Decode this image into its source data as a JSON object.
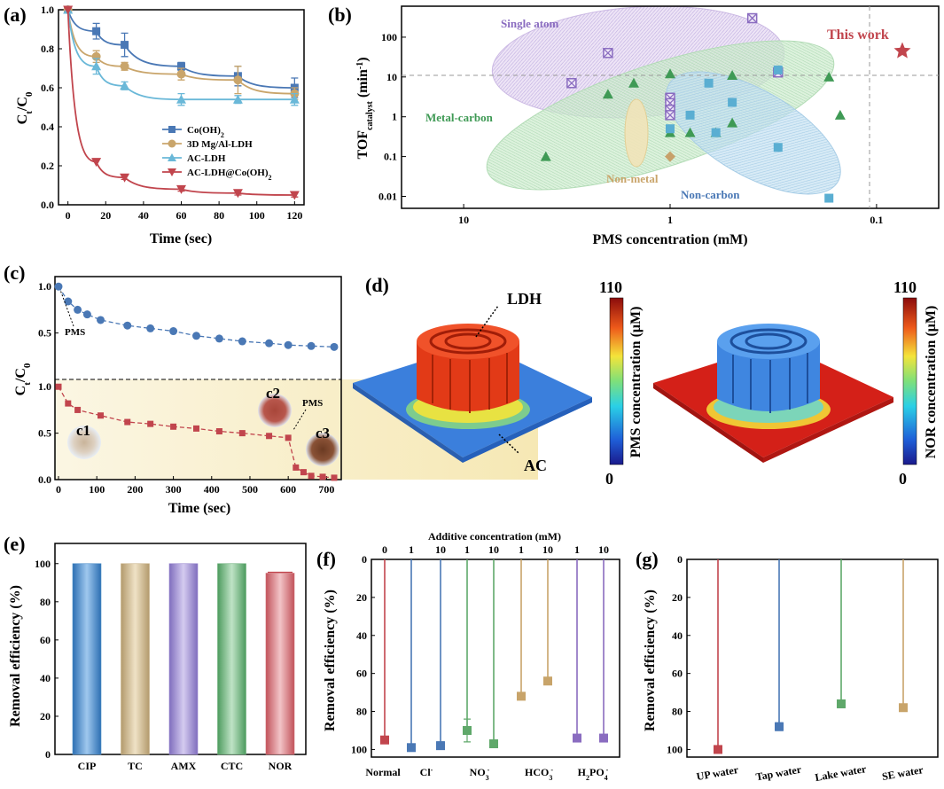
{
  "palette": {
    "blue": "#4a78b5",
    "tan": "#c9a56b",
    "cyan": "#6ab8d8",
    "red": "#c1454d",
    "green": "#5fa86a",
    "purple": "#8a6cc0",
    "lightblue": "#5aaed2",
    "darkgreen": "#3f9a55",
    "brown": "#c7a16a"
  },
  "chart_data": [
    {
      "id": "a",
      "panel_label": "(a)",
      "type": "line",
      "xlabel": "Time (sec)",
      "ylabel": "Ct/C0",
      "ylabel_main": "C",
      "ylabel_sub1": "t",
      "ylabel_mid": "/C",
      "ylabel_sub2": "0",
      "xlim": [
        -5,
        125
      ],
      "ylim": [
        0,
        1
      ],
      "xticks": [
        "0",
        "20",
        "40",
        "60",
        "80",
        "100",
        "120"
      ],
      "yticks": [
        "0.0",
        "0.2",
        "0.4",
        "0.6",
        "0.8",
        "1.0"
      ],
      "series": [
        {
          "name": "Co(OH)2",
          "label_main": "Co(OH)",
          "label_sub": "2",
          "marker": "square",
          "color": "#4a78b5",
          "x": [
            0,
            15,
            30,
            60,
            90,
            120
          ],
          "y": [
            1.0,
            0.89,
            0.82,
            0.71,
            0.66,
            0.6
          ],
          "err": [
            0,
            0.04,
            0.06,
            0.02,
            0.05,
            0.05
          ]
        },
        {
          "name": "3D Mg/Al-LDH",
          "label_main": "3D Mg/Al-LDH",
          "label_sub": "",
          "marker": "circle",
          "color": "#c9a56b",
          "x": [
            0,
            15,
            30,
            60,
            90,
            120
          ],
          "y": [
            1.0,
            0.76,
            0.71,
            0.67,
            0.64,
            0.57
          ],
          "err": [
            0,
            0.03,
            0.02,
            0.03,
            0.07,
            0.03
          ]
        },
        {
          "name": "AC-LDH",
          "label_main": "AC-LDH",
          "label_sub": "",
          "marker": "triangle-up",
          "color": "#6ab8d8",
          "x": [
            0,
            15,
            30,
            60,
            90,
            120
          ],
          "y": [
            1.0,
            0.71,
            0.61,
            0.54,
            0.54,
            0.54
          ],
          "err": [
            0,
            0.04,
            0.02,
            0.03,
            0.02,
            0.03
          ]
        },
        {
          "name": "AC-LDH@Co(OH)2",
          "label_main": "AC-LDH@Co(OH)",
          "label_sub": "2",
          "marker": "triangle-down",
          "color": "#c1454d",
          "x": [
            0,
            15,
            30,
            60,
            90,
            120
          ],
          "y": [
            1.0,
            0.22,
            0.14,
            0.08,
            0.06,
            0.05
          ],
          "err": [
            0,
            0,
            0.01,
            0.01,
            0.01,
            0.01
          ]
        }
      ]
    },
    {
      "id": "b",
      "panel_label": "(b)",
      "type": "scatter",
      "xlabel": "PMS concentration (mM)",
      "ylabel": "TOF catalyst (min-1)",
      "ylabel_main": "TOF",
      "ylabel_sub": "catalyst",
      "ylabel_unit": " (min",
      "ylabel_sup": "-1",
      "ylabel_close": ")",
      "xscale": "log-reversed",
      "yscale": "log",
      "xlim": [
        20,
        0.05
      ],
      "ylim": [
        0.005,
        600
      ],
      "xticks": [
        "10",
        "1",
        "0.1"
      ],
      "yticks": [
        "0.01",
        "0.1",
        "1",
        "10",
        "100"
      ],
      "region_labels": [
        "Single atom",
        "Metal-carbon",
        "Non-metal",
        "Non-carbon",
        "This work"
      ],
      "groups": [
        {
          "name": "Single atom",
          "marker": "crossed-square",
          "color": "#8a6cc0",
          "x": [
            3,
            2,
            1,
            1,
            1,
            1,
            0.4,
            0.3
          ],
          "y": [
            7,
            40,
            3,
            2.2,
            1.5,
            1.1,
            300,
            13
          ]
        },
        {
          "name": "Metal-carbon",
          "marker": "triangle",
          "color": "#3f9a55",
          "x": [
            4,
            2,
            1.5,
            1,
            1,
            0.8,
            0.6,
            0.5,
            0.5,
            0.17,
            0.15
          ],
          "y": [
            0.1,
            3.7,
            7,
            12,
            0.4,
            0.4,
            0.4,
            0.7,
            11,
            10,
            1.1
          ]
        },
        {
          "name": "Non-carbon",
          "marker": "square",
          "color": "#5aaed2",
          "x": [
            1,
            0.8,
            0.65,
            0.6,
            0.5,
            0.3,
            0.3,
            0.17
          ],
          "y": [
            0.5,
            1.1,
            7,
            0.4,
            2.3,
            15,
            0.17,
            0.009
          ]
        },
        {
          "name": "Non-metal",
          "marker": "diamond",
          "color": "#c7a16a",
          "x": [
            1
          ],
          "y": [
            0.1
          ]
        },
        {
          "name": "This work",
          "marker": "star",
          "color": "#c1454d",
          "x": [
            0.075
          ],
          "y": [
            45
          ]
        }
      ],
      "reference_lines": {
        "x": 0.1,
        "y": 10
      }
    },
    {
      "id": "c",
      "panel_label": "(c)",
      "type": "line",
      "xlabel": "Time (sec)",
      "ylabel": "Ct/C0",
      "ylabel_main": "C",
      "ylabel_sub1": "t",
      "ylabel_mid": "/C",
      "ylabel_sub2": "0",
      "xticks": [
        "0",
        "100",
        "200",
        "300",
        "400",
        "500",
        "600",
        "700"
      ],
      "yticks_top": [
        "0.5",
        "1.0"
      ],
      "yticks_bottom": [
        "0.0",
        "0.5",
        "1.0"
      ],
      "annotations": [
        "PMS",
        "PMS",
        "c1",
        "c2",
        "c3"
      ],
      "series": [
        {
          "name": "top",
          "color": "#4a78b5",
          "x": [
            0,
            25,
            50,
            75,
            110,
            180,
            240,
            300,
            360,
            420,
            480,
            550,
            600,
            660,
            720
          ],
          "y": [
            1.0,
            0.84,
            0.75,
            0.7,
            0.64,
            0.58,
            0.55,
            0.52,
            0.47,
            0.44,
            0.41,
            0.39,
            0.37,
            0.36,
            0.35
          ]
        },
        {
          "name": "bottom",
          "color": "#c1454d",
          "x": [
            0,
            25,
            50,
            110,
            180,
            240,
            300,
            360,
            420,
            480,
            550,
            600,
            620,
            640,
            660,
            690,
            720
          ],
          "y": [
            1.0,
            0.82,
            0.75,
            0.69,
            0.62,
            0.6,
            0.57,
            0.55,
            0.52,
            0.5,
            0.47,
            0.45,
            0.13,
            0.08,
            0.04,
            0.03,
            0.02
          ]
        }
      ]
    },
    {
      "id": "e",
      "panel_label": "(e)",
      "type": "bar",
      "ylabel": "Removal efficiency (%)",
      "categories": [
        "CIP",
        "TC",
        "AMX",
        "CTC",
        "NOR"
      ],
      "values": [
        100,
        100,
        100,
        100,
        95
      ],
      "ylim": [
        0,
        100
      ],
      "yticks": [
        "0",
        "20",
        "40",
        "60",
        "80",
        "100"
      ],
      "colors": [
        "#4d8fc8",
        "#c8b48a",
        "#9a88cf",
        "#6db07a",
        "#cf6b72"
      ]
    },
    {
      "id": "f",
      "panel_label": "(f)",
      "type": "bar",
      "ylabel": "Removal efficiency (%)",
      "top_title": "Additive concentration (mM)",
      "orientation": "inverted",
      "categories": [
        "Normal",
        "Cl-",
        "Cl-",
        "NO3-",
        "NO3-",
        "HCO3-",
        "HCO3-",
        "H2PO4-",
        "H2PO4-"
      ],
      "group_labels": [
        {
          "text": "Normal",
          "sub": "",
          "sup": ""
        },
        {
          "text": "Cl",
          "sub": "",
          "sup": "-"
        },
        {
          "text": "NO",
          "sub": "3",
          "sup": "-"
        },
        {
          "text": "HCO",
          "sub": "3",
          "sup": "-"
        },
        {
          "text": "H",
          "sub": "2",
          "mid": "PO",
          "sub2": "4",
          "sup": "-"
        }
      ],
      "concentrations": [
        "0",
        "1",
        "10",
        "1",
        "10",
        "1",
        "10",
        "1",
        "10"
      ],
      "values": [
        95,
        99,
        98,
        90,
        97,
        72,
        64,
        94,
        94
      ],
      "err": [
        1,
        1,
        2,
        6,
        1,
        1,
        1,
        1,
        1
      ],
      "colors": [
        "#c1454d",
        "#4a78b5",
        "#4a78b5",
        "#5fa86a",
        "#5fa86a",
        "#c8a46a",
        "#c8a46a",
        "#8a6cc0",
        "#8a6cc0"
      ],
      "yticks": [
        "0",
        "20",
        "40",
        "60",
        "80",
        "100"
      ]
    },
    {
      "id": "g",
      "panel_label": "(g)",
      "type": "bar",
      "ylabel": "Removal efficiency (%)",
      "orientation": "inverted",
      "categories": [
        "UP water",
        "Tap water",
        "Lake water",
        "SE water"
      ],
      "values": [
        100,
        88,
        76,
        78
      ],
      "err": [
        1,
        2,
        2,
        1
      ],
      "colors": [
        "#c1454d",
        "#4a78b5",
        "#5fa86a",
        "#c8a46a"
      ],
      "yticks": [
        "0",
        "20",
        "40",
        "60",
        "80",
        "100"
      ]
    }
  ],
  "panel_d": {
    "panel_label": "(d)",
    "labels": [
      "LDH",
      "AC"
    ],
    "left_colorbar": {
      "max": "110",
      "min": "0",
      "label": "PMS concentration (μM)"
    },
    "right_colorbar": {
      "max": "110",
      "min": "0",
      "label": "NOR concentration (μM)"
    }
  }
}
